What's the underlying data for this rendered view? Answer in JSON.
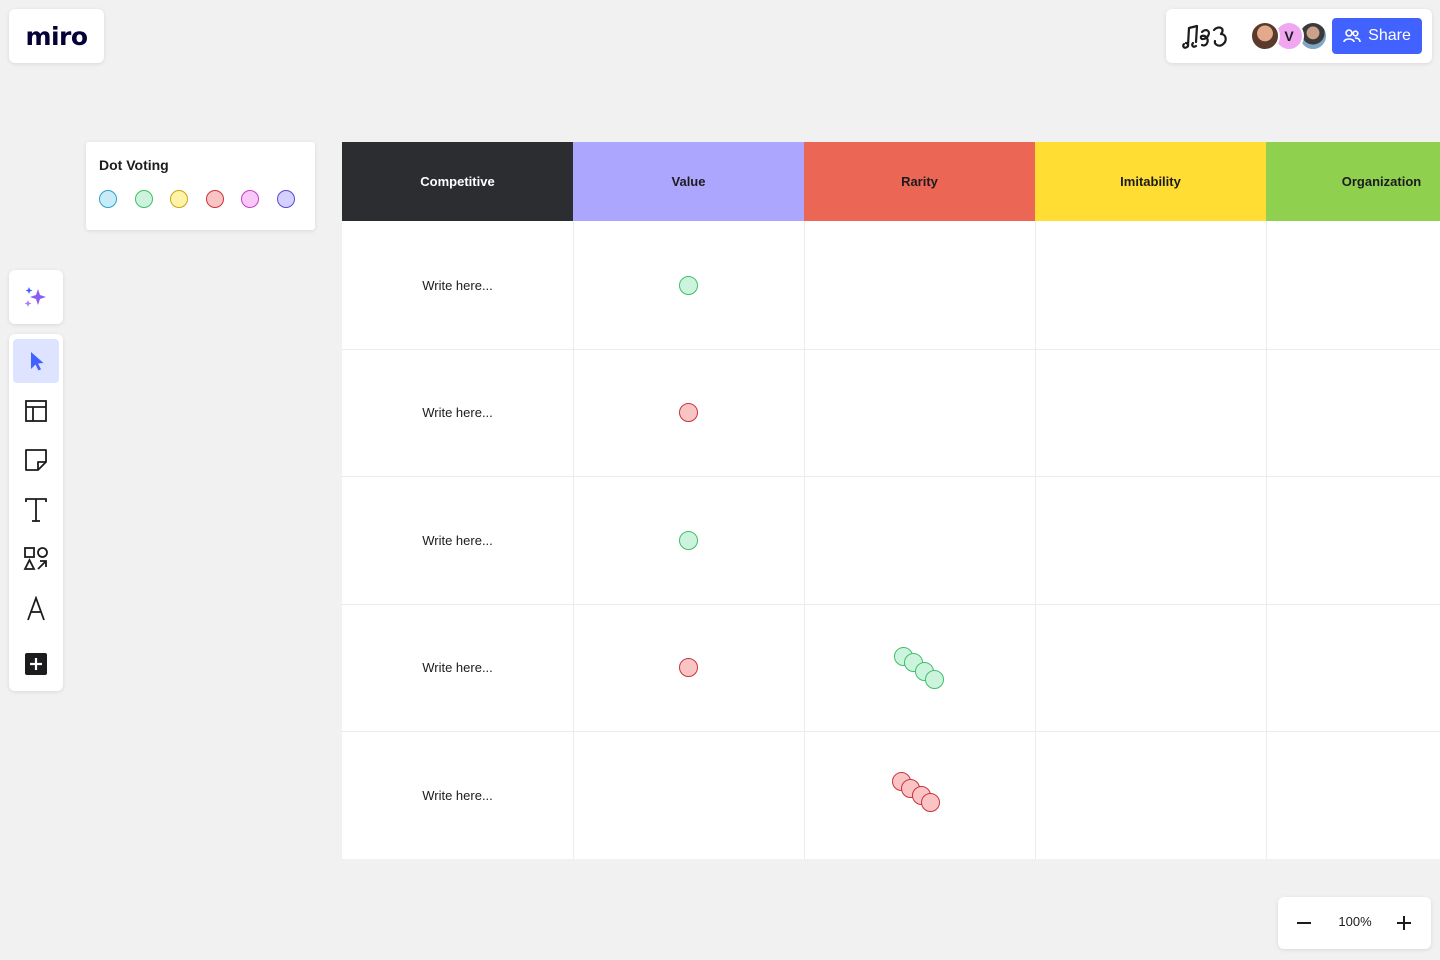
{
  "logo": {
    "text": "miro"
  },
  "header": {
    "reactions_icon": "music-notes-icon",
    "avatars": [
      {
        "initial": "",
        "icon": "user-photo-avatar"
      },
      {
        "initial": "V",
        "color": "#f0a7f0"
      },
      {
        "initial": "",
        "icon": "user-photo-avatar"
      }
    ],
    "share_label": "Share",
    "share_color": "#4262ff"
  },
  "dot_voting": {
    "title": "Dot Voting",
    "dots": [
      {
        "color": "cyan",
        "fill": "#c7ecf7",
        "stroke": "#2fa4c8"
      },
      {
        "color": "green",
        "fill": "#ccf4dd",
        "stroke": "#3fbf6a"
      },
      {
        "color": "yellow",
        "fill": "#fff3a8",
        "stroke": "#c9a514"
      },
      {
        "color": "red",
        "fill": "#fbc4c4",
        "stroke": "#c8343d"
      },
      {
        "color": "pink",
        "fill": "#f8c9f8",
        "stroke": "#c13fc1"
      },
      {
        "color": "purple",
        "fill": "#d4d0ff",
        "stroke": "#5a4bd1"
      }
    ]
  },
  "toolbar": {
    "ai_icon": "sparkles-icon",
    "tools": [
      "select-icon",
      "templates-icon",
      "sticky-note-icon",
      "text-icon",
      "shapes-icon",
      "pen-icon",
      "add-more-icon"
    ]
  },
  "board": {
    "columns": [
      {
        "label": "Competitive",
        "bg": "#2c2d30",
        "fg": "#ffffff"
      },
      {
        "label": "Value",
        "bg": "#ada6ff",
        "fg": "#1c1c1e"
      },
      {
        "label": "Rarity",
        "bg": "#ec6656",
        "fg": "#1c1c1e"
      },
      {
        "label": "Imitability",
        "bg": "#ffdd33",
        "fg": "#1c1c1e"
      },
      {
        "label": "Organization",
        "bg": "#8fd14f",
        "fg": "#1c1c1e"
      }
    ],
    "rows": [
      {
        "text": "Write here..."
      },
      {
        "text": "Write here..."
      },
      {
        "text": "Write here..."
      },
      {
        "text": "Write here..."
      },
      {
        "text": "Write here..."
      }
    ],
    "votes": [
      {
        "row": 0,
        "column": "Value",
        "color": "green",
        "count": 1
      },
      {
        "row": 1,
        "column": "Value",
        "color": "red",
        "count": 1
      },
      {
        "row": 2,
        "column": "Value",
        "color": "green",
        "count": 1
      },
      {
        "row": 3,
        "column": "Value",
        "color": "red",
        "count": 1
      },
      {
        "row": 3,
        "column": "Rarity",
        "color": "green",
        "count": 4
      },
      {
        "row": 4,
        "column": "Rarity",
        "color": "red",
        "count": 4
      }
    ]
  },
  "zoom": {
    "value": "100%",
    "minus_icon": "zoom-out-icon",
    "plus_icon": "zoom-in-icon"
  }
}
